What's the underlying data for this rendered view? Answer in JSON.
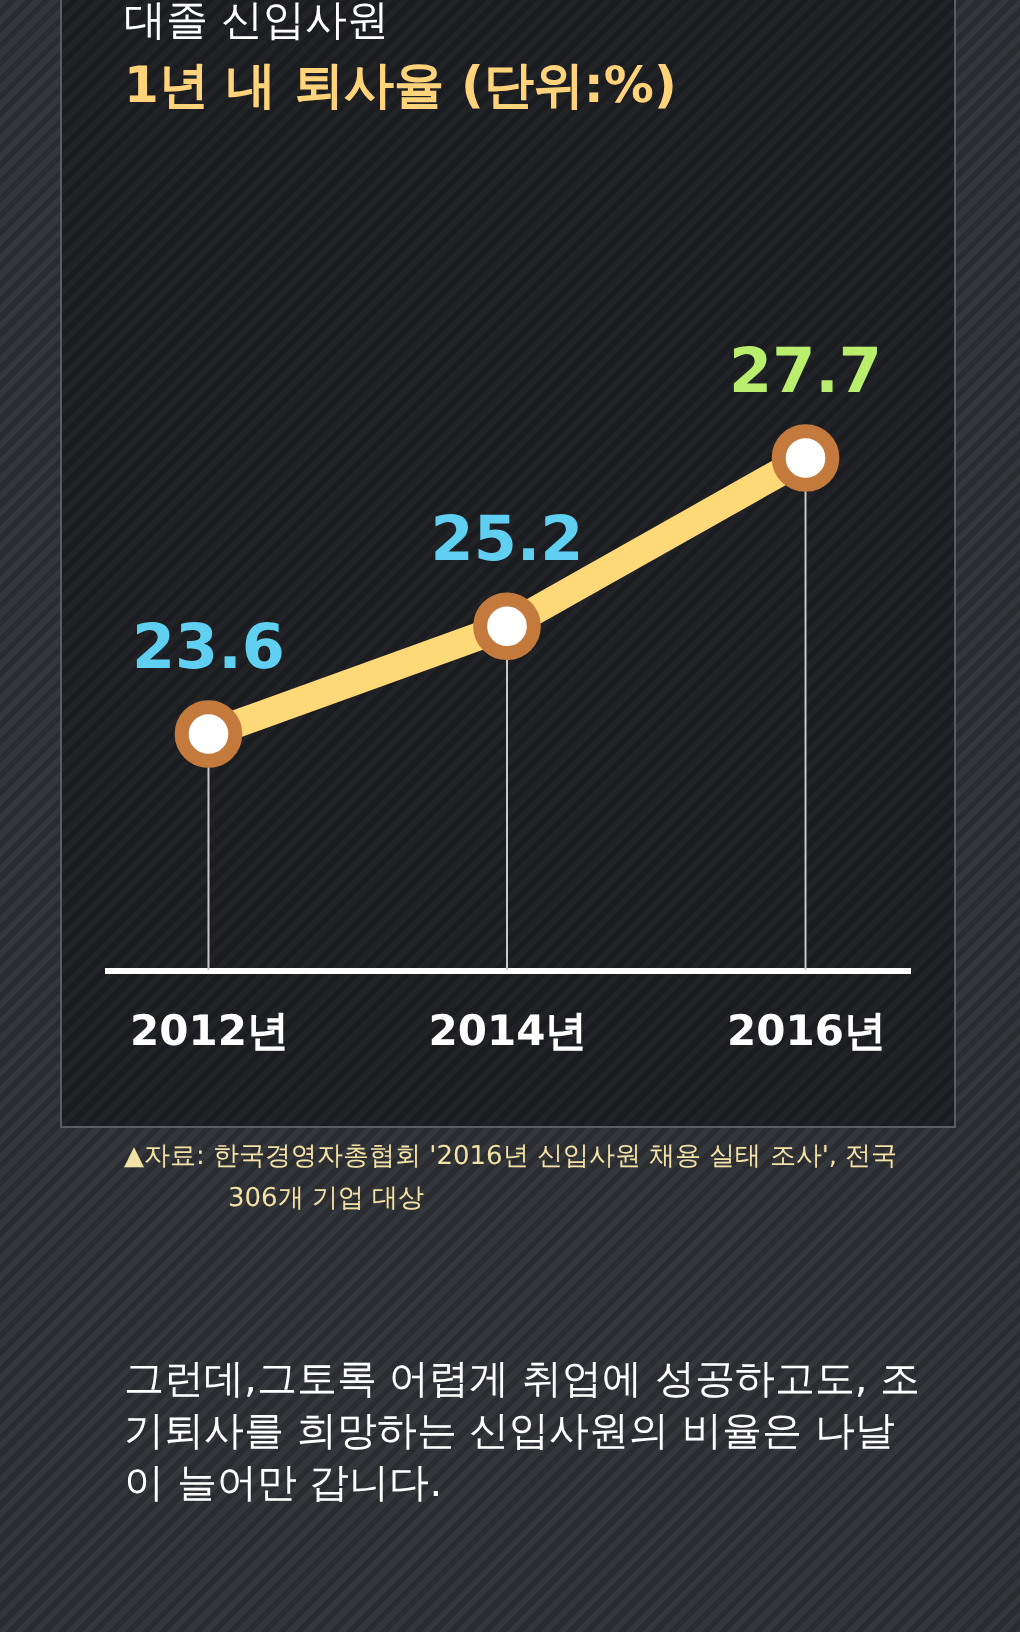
{
  "chart_data": {
    "type": "line",
    "title": "대졸 신입사원",
    "subtitle": "1년 내 퇴사율 (단위:%)",
    "categories": [
      "2012년",
      "2014년",
      "2016년"
    ],
    "series": [
      {
        "color": "#ffd978",
        "values": [
          23.6,
          25.2,
          27.7
        ]
      }
    ],
    "data_labels": true,
    "marker": "circle",
    "grid": "x",
    "annotations": [
      "▲자료: 한국경영자총협회 '2016년 신입사원 채용 실태 조사', 전국 306개 기업 대상",
      "그런데,그토록 어렵게 취업에 성공하고도, 조기퇴사를 희망하는 신입사원의 비율은 나날이 늘어만 갑니다."
    ]
  }
}
